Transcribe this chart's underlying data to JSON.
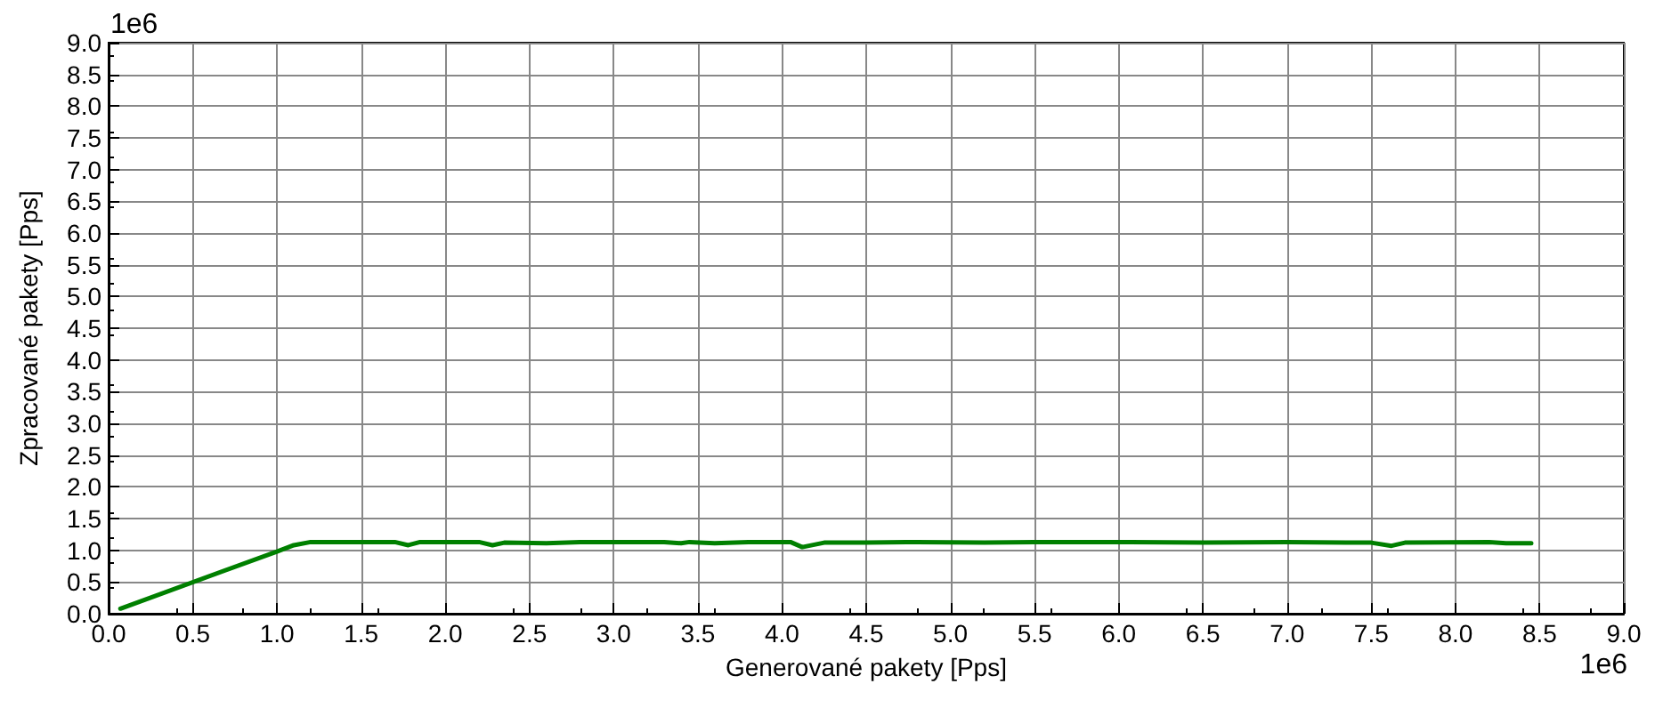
{
  "chart_data": {
    "type": "line",
    "xlabel": "Generované pakety [Pps]",
    "ylabel": "Zpracované pakety [Pps]",
    "annotations": [
      "1e6",
      "1e6"
    ],
    "x": [
      0.07,
      1.0,
      1.1,
      1.2,
      1.7,
      1.78,
      1.85,
      2.2,
      2.28,
      2.35,
      2.6,
      2.8,
      3.3,
      3.4,
      3.45,
      3.6,
      3.8,
      4.05,
      4.12,
      4.25,
      4.5,
      4.8,
      5.2,
      5.5,
      6.0,
      6.5,
      7.0,
      7.35,
      7.5,
      7.62,
      7.7,
      8.2,
      8.3,
      8.45
    ],
    "series": [
      {
        "color": "#008000",
        "values": [
          0.08,
          0.98,
          1.08,
          1.13,
          1.13,
          1.08,
          1.13,
          1.13,
          1.08,
          1.12,
          1.11,
          1.13,
          1.13,
          1.11,
          1.13,
          1.11,
          1.13,
          1.13,
          1.05,
          1.12,
          1.12,
          1.13,
          1.12,
          1.13,
          1.13,
          1.12,
          1.13,
          1.12,
          1.12,
          1.07,
          1.12,
          1.13,
          1.11,
          1.11
        ]
      }
    ],
    "xlim": [
      0,
      9
    ],
    "ylim": [
      0,
      9
    ],
    "xticks": [
      {
        "value": 0,
        "label": "0.0"
      },
      {
        "value": 0.5,
        "label": "0.5"
      },
      {
        "value": 1,
        "label": "1.0"
      },
      {
        "value": 1.5,
        "label": "1.5"
      },
      {
        "value": 2,
        "label": "2.0"
      },
      {
        "value": 2.5,
        "label": "2.5"
      },
      {
        "value": 3,
        "label": "3.0"
      },
      {
        "value": 3.5,
        "label": "3.5"
      },
      {
        "value": 4,
        "label": "4.0"
      },
      {
        "value": 4.5,
        "label": "4.5"
      },
      {
        "value": 5,
        "label": "5.0"
      },
      {
        "value": 5.5,
        "label": "5.5"
      },
      {
        "value": 6,
        "label": "6.0"
      },
      {
        "value": 6.5,
        "label": "6.5"
      },
      {
        "value": 7,
        "label": "7.0"
      },
      {
        "value": 7.5,
        "label": "7.5"
      },
      {
        "value": 8,
        "label": "8.0"
      },
      {
        "value": 8.5,
        "label": "8.5"
      },
      {
        "value": 9,
        "label": "9.0"
      }
    ],
    "yticks": [
      {
        "value": 0,
        "label": "0.0"
      },
      {
        "value": 0.5,
        "label": "0.5"
      },
      {
        "value": 1,
        "label": "1.0"
      },
      {
        "value": 1.5,
        "label": "1.5"
      },
      {
        "value": 2,
        "label": "2.0"
      },
      {
        "value": 2.5,
        "label": "2.5"
      },
      {
        "value": 3,
        "label": "3.0"
      },
      {
        "value": 3.5,
        "label": "3.5"
      },
      {
        "value": 4,
        "label": "4.0"
      },
      {
        "value": 4.5,
        "label": "4.5"
      },
      {
        "value": 5,
        "label": "5.0"
      },
      {
        "value": 5.5,
        "label": "5.5"
      },
      {
        "value": 6,
        "label": "6.0"
      },
      {
        "value": 6.5,
        "label": "6.5"
      },
      {
        "value": 7,
        "label": "7.0"
      },
      {
        "value": 7.5,
        "label": "7.5"
      },
      {
        "value": 8,
        "label": "8.0"
      },
      {
        "value": 8.5,
        "label": "8.5"
      },
      {
        "value": 9,
        "label": "9.0"
      }
    ],
    "grid": true,
    "marker": "none",
    "line_style": "solid"
  }
}
